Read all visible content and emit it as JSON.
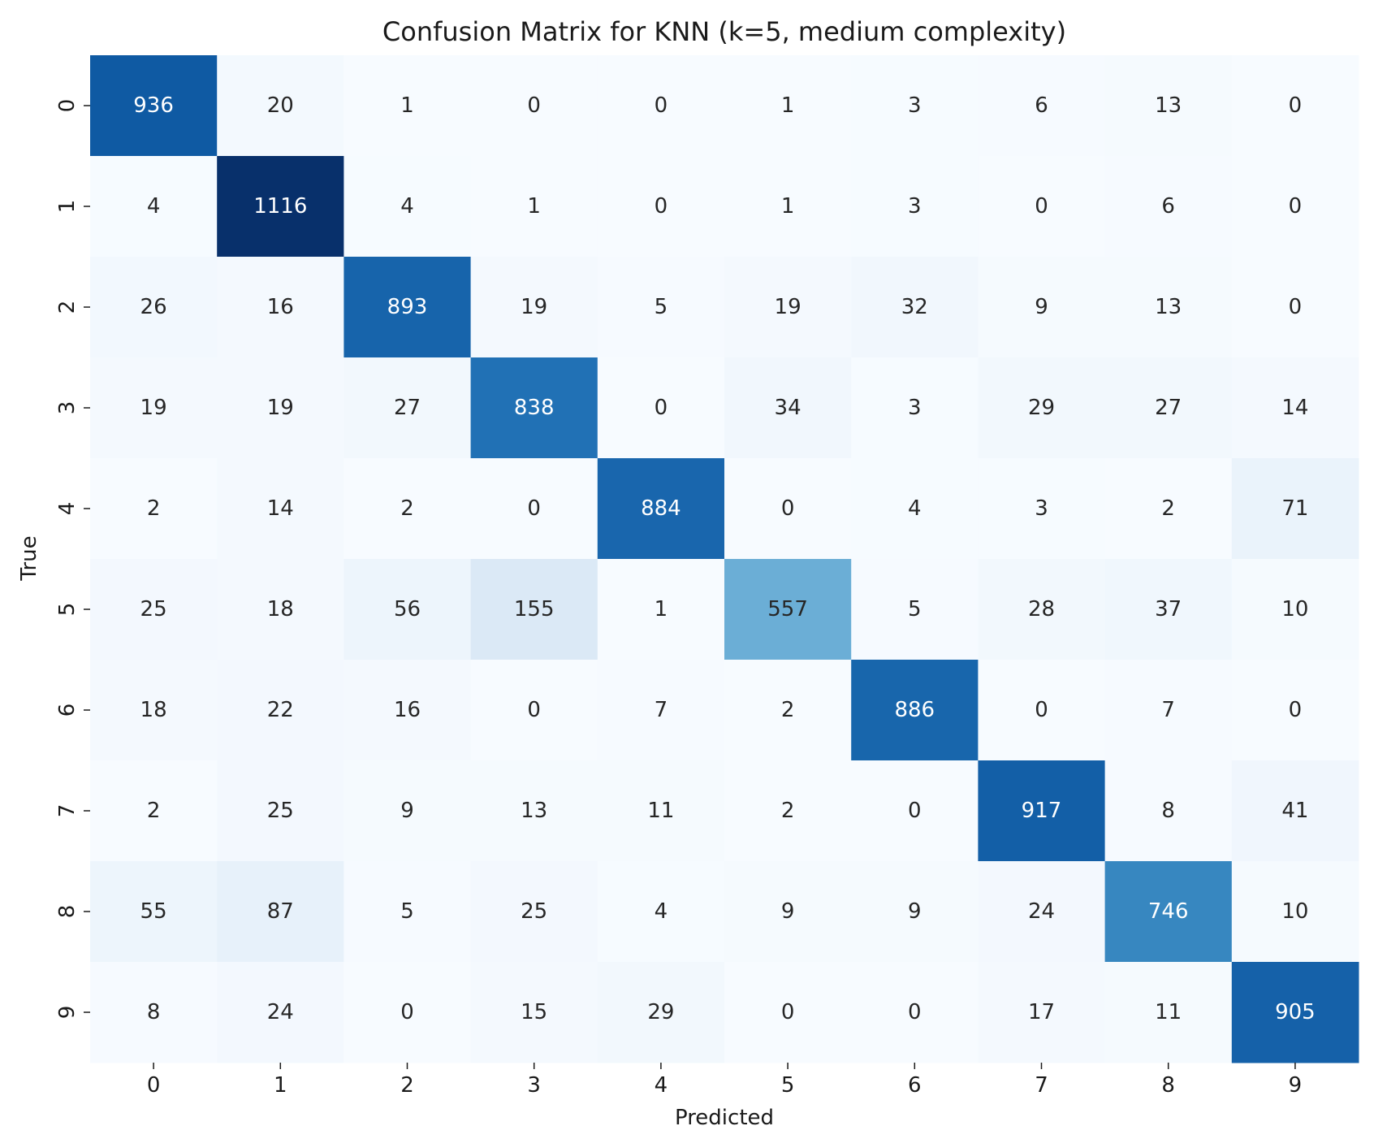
{
  "chart_data": {
    "type": "heatmap",
    "title": "Confusion Matrix for KNN (k=5, medium complexity)",
    "xlabel": "Predicted",
    "ylabel": "True",
    "x_categories": [
      "0",
      "1",
      "2",
      "3",
      "4",
      "5",
      "6",
      "7",
      "8",
      "9"
    ],
    "y_categories": [
      "0",
      "1",
      "2",
      "3",
      "4",
      "5",
      "6",
      "7",
      "8",
      "9"
    ],
    "colormap": "Blues",
    "colorbar": false,
    "grid": false,
    "color_range": [
      0,
      1116
    ],
    "values": [
      [
        936,
        20,
        1,
        0,
        0,
        1,
        3,
        6,
        13,
        0
      ],
      [
        4,
        1116,
        4,
        1,
        0,
        1,
        3,
        0,
        6,
        0
      ],
      [
        26,
        16,
        893,
        19,
        5,
        19,
        32,
        9,
        13,
        0
      ],
      [
        19,
        19,
        27,
        838,
        0,
        34,
        3,
        29,
        27,
        14
      ],
      [
        2,
        14,
        2,
        0,
        884,
        0,
        4,
        3,
        2,
        71
      ],
      [
        25,
        18,
        56,
        155,
        1,
        557,
        5,
        28,
        37,
        10
      ],
      [
        18,
        22,
        16,
        0,
        7,
        2,
        886,
        0,
        7,
        0
      ],
      [
        2,
        25,
        9,
        13,
        11,
        2,
        0,
        917,
        8,
        41
      ],
      [
        55,
        87,
        5,
        25,
        4,
        9,
        9,
        24,
        746,
        10
      ],
      [
        8,
        24,
        0,
        15,
        29,
        0,
        0,
        17,
        11,
        905
      ]
    ]
  }
}
